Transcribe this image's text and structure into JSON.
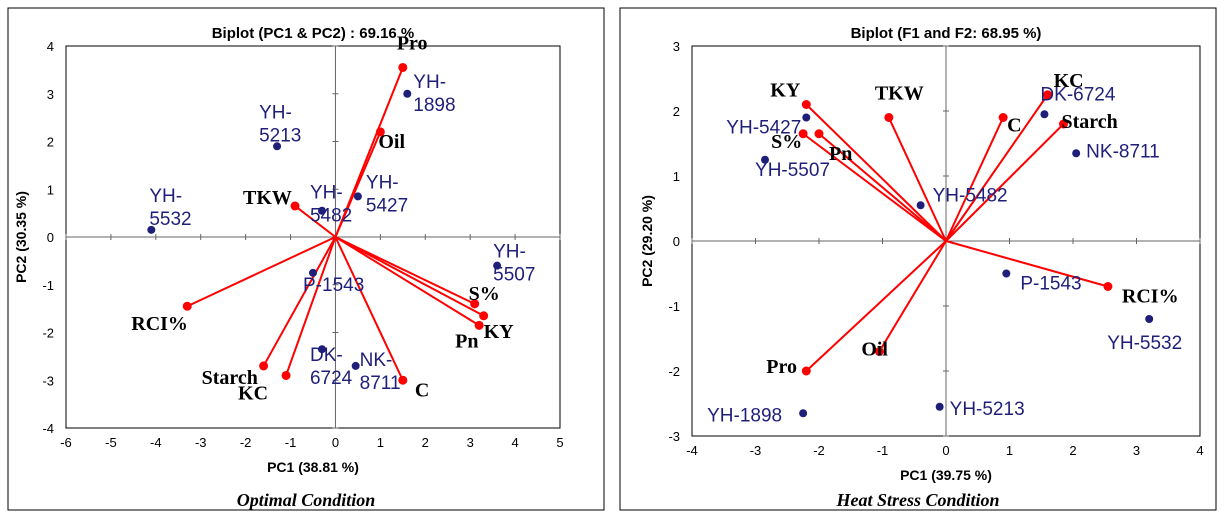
{
  "chart_data": [
    {
      "type": "scatter",
      "title": "Biplot  (PC1 & PC2) : 69.16 %",
      "xlabel": "PC1 (38.81 %)",
      "ylabel": "PC2 (30.35 %)",
      "caption": "Optimal Condition",
      "xlim": [
        -6,
        5
      ],
      "ylim": [
        -4,
        4
      ],
      "xticks": [
        "-6",
        "-5",
        "-4",
        "-3",
        "-2",
        "-1",
        "0",
        "1",
        "2",
        "3",
        "4",
        "5"
      ],
      "yticks": [
        "4",
        "3",
        "2",
        "1",
        "0",
        "-1",
        "-2",
        "-3",
        "-4"
      ],
      "grid": false,
      "colors": {
        "observation": "#1f1f7a",
        "variable": "#ff0000",
        "variable_label": "#000000"
      },
      "observations": [
        {
          "name": "YH-\n1898",
          "x": 1.6,
          "y": 3.0
        },
        {
          "name": "YH-\n5213",
          "x": -1.3,
          "y": 1.9
        },
        {
          "name": "YH-\n5427",
          "x": 0.5,
          "y": 0.85
        },
        {
          "name": "YH-\n5532",
          "x": -4.1,
          "y": 0.15
        },
        {
          "name": "YH-\n5482",
          "x": -0.3,
          "y": 0.55
        },
        {
          "name": "P-1543",
          "x": -0.5,
          "y": -0.75
        },
        {
          "name": "DK-\n6724",
          "x": -0.3,
          "y": -2.35
        },
        {
          "name": "NK-\n8711",
          "x": 0.45,
          "y": -2.7
        },
        {
          "name": "YH-\n5507",
          "x": 3.6,
          "y": -0.6
        }
      ],
      "variables": [
        {
          "name": "Pro",
          "x": 1.5,
          "y": 3.55
        },
        {
          "name": "Oil",
          "x": 1.0,
          "y": 2.2
        },
        {
          "name": "TKW",
          "x": -0.9,
          "y": 0.65
        },
        {
          "name": "RCI%",
          "x": -3.3,
          "y": -1.45
        },
        {
          "name": "Starch",
          "x": -1.6,
          "y": -2.7
        },
        {
          "name": "KC",
          "x": -1.1,
          "y": -2.9
        },
        {
          "name": "C",
          "x": 1.5,
          "y": -3.0
        },
        {
          "name": "S%",
          "x": 3.1,
          "y": -1.4
        },
        {
          "name": "Pn",
          "x": 3.2,
          "y": -1.85
        },
        {
          "name": "KY",
          "x": 3.3,
          "y": -1.65
        }
      ]
    },
    {
      "type": "scatter",
      "title": "Biplot (F1 and F2: 68.95 %)",
      "xlabel": "PC1 (39.75 %)",
      "ylabel": "PC2 (29.20 %)",
      "caption": "Heat Stress Condition",
      "xlim": [
        -4,
        4
      ],
      "ylim": [
        -3,
        3
      ],
      "xticks": [
        "-4",
        "-3",
        "-2",
        "-1",
        "0",
        "1",
        "2",
        "3",
        "4"
      ],
      "yticks": [
        "3",
        "2",
        "1",
        "0",
        "-1",
        "-2",
        "-3"
      ],
      "grid": false,
      "colors": {
        "observation": "#1f1f7a",
        "variable": "#ff0000",
        "variable_label": "#000000"
      },
      "observations": [
        {
          "name": "DK-6724",
          "x": 1.55,
          "y": 1.95
        },
        {
          "name": "NK-8711",
          "x": 2.05,
          "y": 1.35
        },
        {
          "name": "YH-5427",
          "x": -2.2,
          "y": 1.9
        },
        {
          "name": "YH-5507",
          "x": -2.85,
          "y": 1.25
        },
        {
          "name": "YH-5482",
          "x": -0.4,
          "y": 0.55
        },
        {
          "name": "P-1543",
          "x": 0.95,
          "y": -0.5
        },
        {
          "name": "YH-5532",
          "x": 3.2,
          "y": -1.2
        },
        {
          "name": "YH-1898",
          "x": -2.25,
          "y": -2.65
        },
        {
          "name": "YH-5213",
          "x": -0.1,
          "y": -2.55
        }
      ],
      "variables": [
        {
          "name": "KY",
          "x": -2.2,
          "y": 2.1
        },
        {
          "name": "TKW",
          "x": -0.9,
          "y": 1.9
        },
        {
          "name": "S%",
          "x": -2.25,
          "y": 1.65
        },
        {
          "name": "Pn",
          "x": -2.0,
          "y": 1.65
        },
        {
          "name": "KC",
          "x": 1.6,
          "y": 2.25
        },
        {
          "name": "C",
          "x": 0.9,
          "y": 1.9
        },
        {
          "name": "Starch",
          "x": 1.85,
          "y": 1.8
        },
        {
          "name": "RCI%",
          "x": 2.55,
          "y": -0.7
        },
        {
          "name": "Pro",
          "x": -2.2,
          "y": -2.0
        },
        {
          "name": "Oil",
          "x": -1.05,
          "y": -1.7
        }
      ]
    }
  ]
}
